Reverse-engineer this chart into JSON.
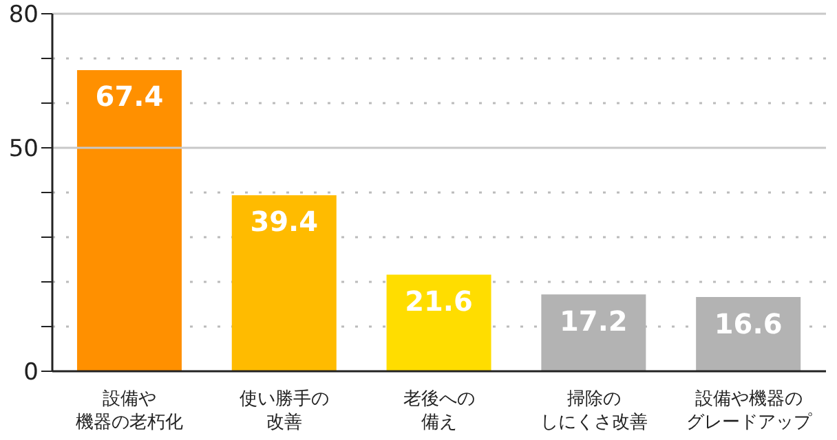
{
  "chart_data": {
    "type": "bar",
    "categories": [
      "設備や機器の老朽化",
      "使い勝手の改善",
      "老後への備え",
      "掃除のしにくさ改善",
      "設備や機器のグレードアップ"
    ],
    "ref_lines": [
      {
        "axis": "y",
        "value": 50
      }
    ],
    "values": [
      67.4,
      39.4,
      21.6,
      17.2,
      16.6
    ],
    "colors": [
      "#ff9000",
      "#ffbb00",
      "#ffdd00",
      "#b3b3b3",
      "#b3b3b3"
    ],
    "ylim": [
      0,
      80
    ],
    "yticks": [
      0,
      {
        "value": 10,
        "label": null
      },
      {
        "value": 20,
        "label": null
      },
      {
        "value": 30,
        "label": null
      },
      {
        "value": 40,
        "label": null
      },
      50,
      {
        "value": 60,
        "label": null
      },
      {
        "value": 70,
        "label": null
      },
      80
    ],
    "grid": "y",
    "data_labels": true
  }
}
